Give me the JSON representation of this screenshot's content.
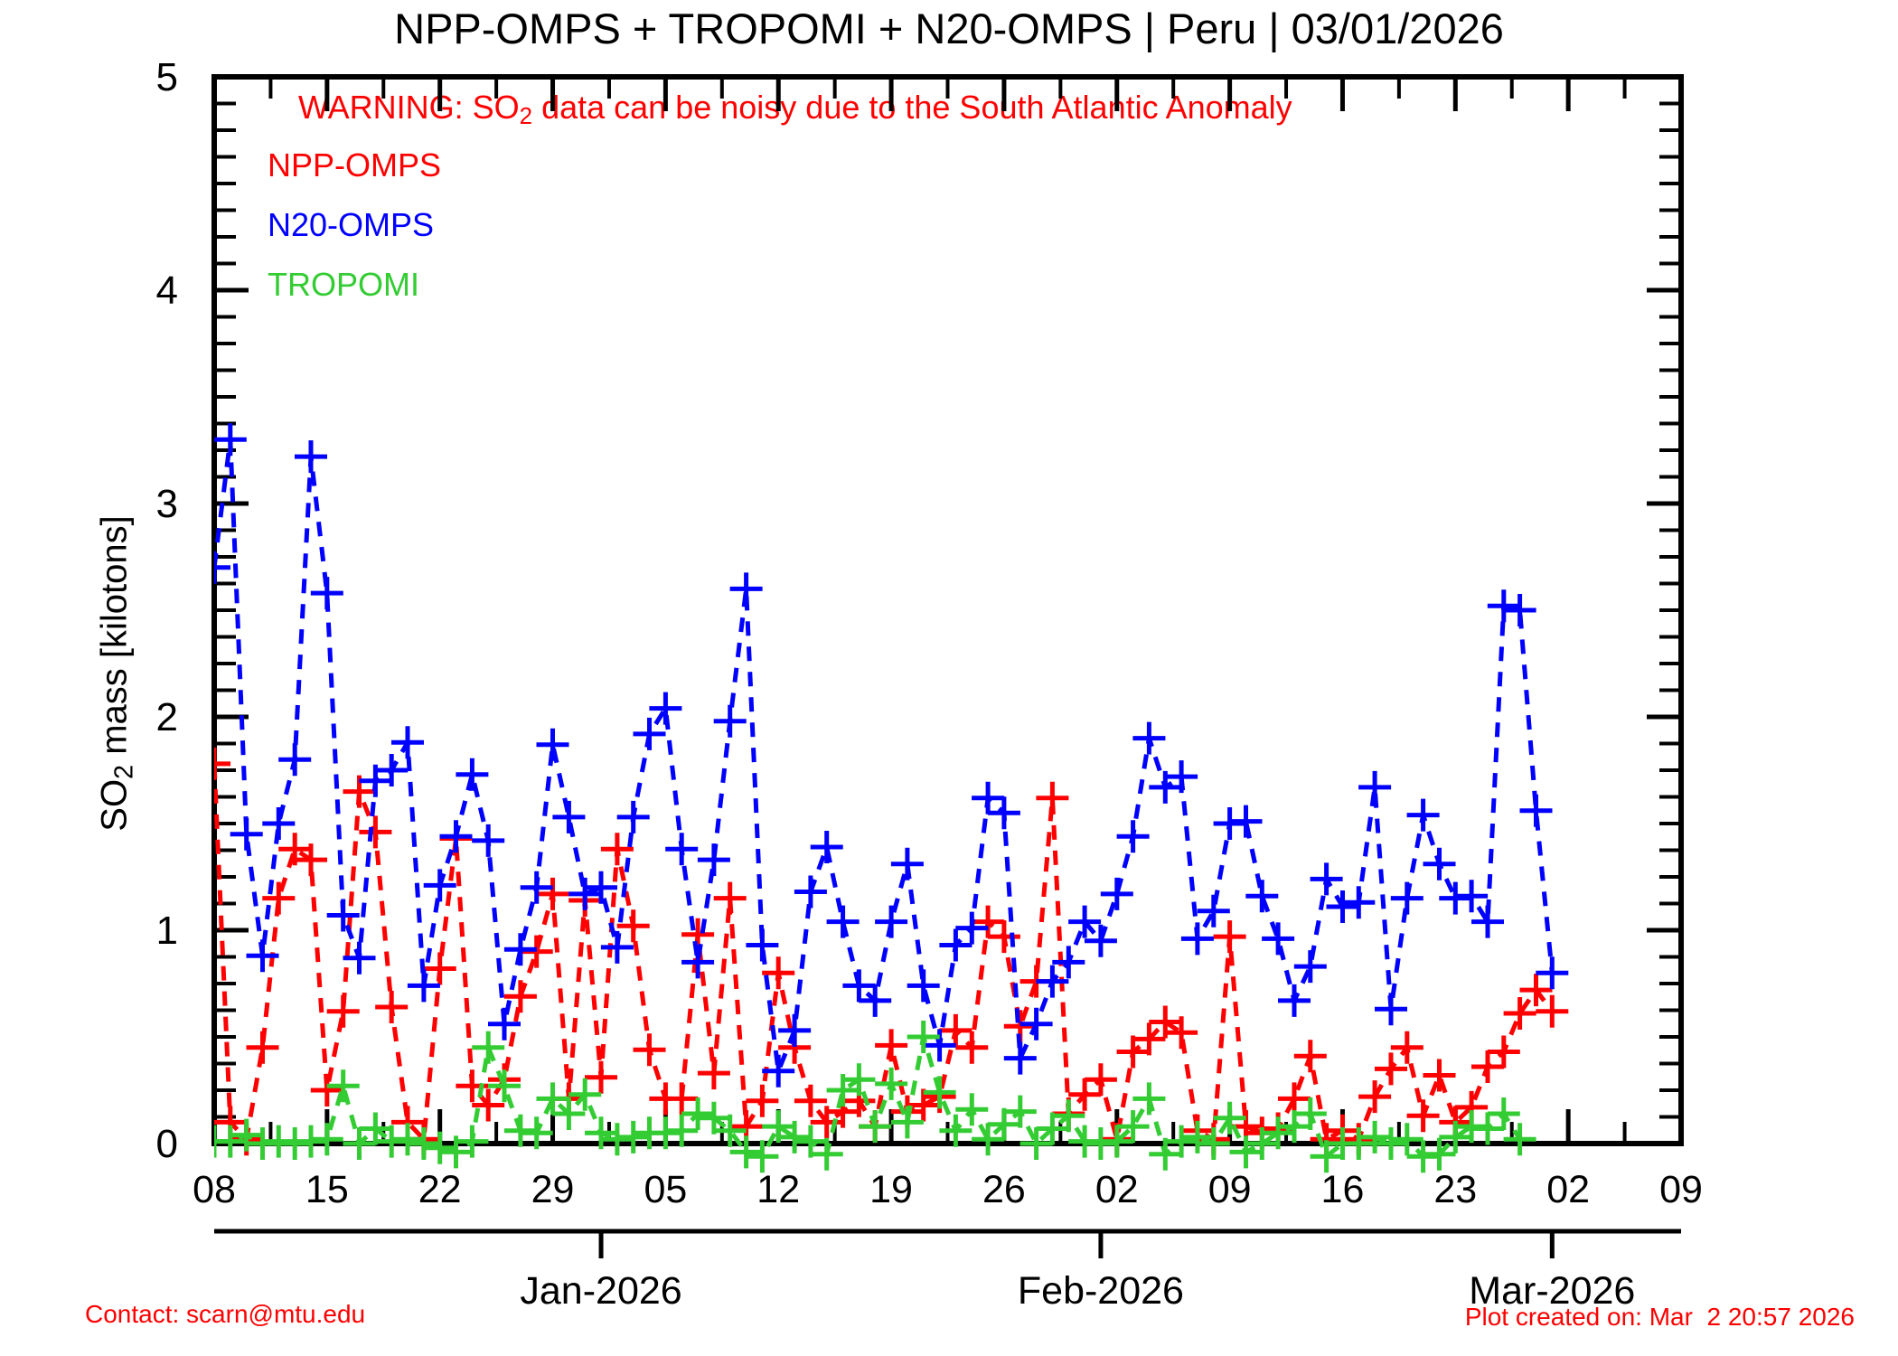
{
  "title": "NPP-OMPS + TROPOMI + N20-OMPS | Peru | 03/01/2026",
  "warning": {
    "prefix": "WARNING: SO",
    "sub": "2",
    "suffix": " data can be noisy due to the South Atlantic Anomaly",
    "color": "#ff0000"
  },
  "legend": [
    {
      "label": "NPP-OMPS",
      "color": "#ff0000"
    },
    {
      "label": "N20-OMPS",
      "color": "#0000ff"
    },
    {
      "label": "TROPOMI",
      "color": "#33cc33"
    }
  ],
  "footer_left": "Contact: scarn@mtu.edu",
  "footer_right": "Plot created on: Mar  2 20:57 2026",
  "chart_data": {
    "type": "line",
    "title": "NPP-OMPS + TROPOMI + N20-OMPS | Peru | 03/01/2026",
    "ylabel_parts": {
      "prefix": "SO",
      "sub": "2",
      "suffix": " mass [kilotons]"
    },
    "ylim": [
      0,
      5
    ],
    "y_major_ticks": [
      "0",
      "1",
      "2",
      "3",
      "4",
      "5"
    ],
    "y_minor_step": 0.125,
    "grid": false,
    "legend_position": "top-left-inside",
    "x_start_date": "2025-12-08",
    "x_total_days": 91,
    "x_week_tick_labels": [
      "08",
      "15",
      "22",
      "29",
      "05",
      "12",
      "19",
      "26",
      "02",
      "09",
      "16",
      "23",
      "02",
      "09"
    ],
    "x_minor_tick_halfweek": true,
    "month_ticks": [
      {
        "day": 24,
        "label": "Jan-2026"
      },
      {
        "day": 55,
        "label": "Feb-2026"
      },
      {
        "day": 83,
        "label": "Mar-2026"
      }
    ],
    "dates": [
      "12-08",
      "12-09",
      "12-10",
      "12-11",
      "12-12",
      "12-13",
      "12-14",
      "12-15",
      "12-16",
      "12-17",
      "12-18",
      "12-19",
      "12-20",
      "12-21",
      "12-22",
      "12-23",
      "12-24",
      "12-25",
      "12-26",
      "12-27",
      "12-28",
      "12-29",
      "12-30",
      "12-31",
      "01-01",
      "01-02",
      "01-03",
      "01-04",
      "01-05",
      "01-06",
      "01-07",
      "01-08",
      "01-09",
      "01-10",
      "01-11",
      "01-12",
      "01-13",
      "01-14",
      "01-15",
      "01-16",
      "01-17",
      "01-18",
      "01-19",
      "01-20",
      "01-21",
      "01-22",
      "01-23",
      "01-24",
      "01-25",
      "01-26",
      "01-27",
      "01-28",
      "01-29",
      "01-30",
      "01-31",
      "02-01",
      "02-02",
      "02-03",
      "02-04",
      "02-05",
      "02-06",
      "02-07",
      "02-08",
      "02-09",
      "02-10",
      "02-11",
      "02-12",
      "02-13",
      "02-14",
      "02-15",
      "02-16",
      "02-17",
      "02-18",
      "02-19",
      "02-20",
      "02-21",
      "02-22",
      "02-23",
      "02-24",
      "02-25",
      "02-26",
      "02-27",
      "02-28",
      "03-01"
    ],
    "series": [
      {
        "name": "NPP-OMPS",
        "color": "#ff0000",
        "values": [
          1.78,
          0.1,
          0.02,
          0.45,
          1.15,
          1.38,
          1.33,
          0.25,
          0.62,
          1.65,
          1.46,
          0.64,
          0.1,
          0.02,
          0.82,
          1.43,
          0.27,
          0.18,
          0.3,
          0.69,
          0.9,
          1.17,
          0.21,
          1.14,
          0.31,
          1.38,
          1.02,
          0.44,
          0.21,
          0.21,
          0.98,
          0.33,
          1.15,
          0.08,
          0.2,
          0.8,
          0.45,
          0.2,
          0.1,
          0.15,
          0.2,
          0.08,
          0.46,
          0.15,
          0.18,
          0.22,
          0.53,
          0.45,
          1.04,
          0.97,
          0.55,
          0.76,
          1.62,
          0.14,
          0.23,
          0.3,
          0.02,
          0.43,
          0.49,
          0.57,
          0.52,
          0.06,
          0.02,
          0.97,
          0.08,
          0.05,
          0.07,
          0.21,
          0.41,
          0.02,
          0.06,
          0.02,
          0.22,
          0.35,
          0.45,
          0.13,
          0.32,
          0.1,
          0.17,
          0.36,
          0.43,
          0.61,
          0.72,
          0.62
        ]
      },
      {
        "name": "N20-OMPS",
        "color": "#0000ff",
        "values": [
          2.7,
          3.3,
          1.45,
          0.88,
          1.5,
          1.8,
          3.22,
          2.58,
          1.07,
          0.87,
          1.7,
          1.75,
          1.88,
          0.74,
          1.21,
          1.44,
          1.73,
          1.42,
          0.56,
          0.91,
          1.2,
          1.87,
          1.53,
          1.17,
          1.2,
          0.92,
          1.53,
          1.92,
          2.04,
          1.38,
          0.85,
          1.33,
          1.98,
          2.6,
          0.93,
          0.34,
          0.53,
          1.18,
          1.39,
          1.04,
          0.74,
          0.67,
          1.04,
          1.31,
          0.74,
          0.46,
          0.93,
          1.01,
          1.62,
          1.55,
          0.4,
          0.56,
          0.76,
          0.85,
          1.04,
          0.95,
          1.17,
          1.44,
          1.9,
          1.67,
          1.72,
          0.96,
          1.09,
          1.5,
          1.51,
          1.16,
          0.96,
          0.67,
          0.83,
          1.24,
          1.11,
          1.13,
          1.67,
          0.63,
          1.15,
          1.54,
          1.31,
          1.15,
          1.16,
          1.04,
          2.52,
          2.5,
          1.56,
          0.8
        ]
      },
      {
        "name": "TROPOMI",
        "color": "#33cc33",
        "values": [
          0.01,
          0.01,
          0.04,
          0.0,
          0.01,
          0.0,
          0.01,
          0.02,
          0.27,
          0.0,
          0.07,
          0.01,
          0.02,
          0.0,
          -0.02,
          -0.04,
          0.01,
          0.45,
          0.27,
          0.06,
          0.05,
          0.21,
          0.14,
          0.23,
          0.05,
          0.02,
          0.03,
          0.05,
          0.05,
          0.06,
          0.14,
          0.12,
          0.06,
          -0.04,
          -0.06,
          0.08,
          0.03,
          0.01,
          -0.05,
          0.25,
          0.3,
          0.08,
          0.28,
          0.1,
          0.5,
          0.24,
          0.06,
          0.16,
          0.02,
          0.09,
          0.15,
          0.0,
          0.07,
          0.13,
          0.01,
          0.0,
          0.01,
          0.08,
          0.21,
          -0.05,
          0.01,
          0.03,
          0.0,
          0.12,
          -0.04,
          0.0,
          0.05,
          0.08,
          0.14,
          -0.06,
          0.0,
          0.0,
          0.03,
          0.0,
          0.02,
          -0.06,
          -0.05,
          0.03,
          0.08,
          0.07,
          0.14,
          0.02,
          null,
          null
        ]
      }
    ]
  }
}
